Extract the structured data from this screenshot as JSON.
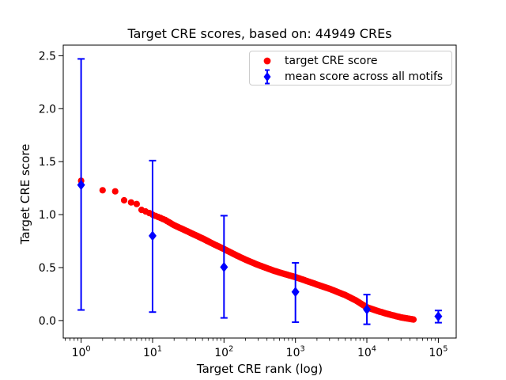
{
  "figure": {
    "background": "#ffffff",
    "text_color": "#000000"
  },
  "chart_data": {
    "type": "scatter",
    "title": "Target CRE scores, based on: 44949 CREs",
    "xlabel": "Target CRE rank (log)",
    "ylabel": "Target CRE score",
    "x_scale": "log",
    "grid": false,
    "xlim_log10": [
      -0.25,
      5.25
    ],
    "ylim": [
      -0.165,
      2.6
    ],
    "x_tick_exponents": [
      0,
      1,
      2,
      3,
      4,
      5
    ],
    "x_tick_base": "10",
    "y_ticks": [
      "0.0",
      "0.5",
      "1.0",
      "1.5",
      "2.0",
      "2.5"
    ],
    "legend": {
      "position": "upper right",
      "entries": [
        {
          "label": "target CRE score",
          "color": "#ff0000",
          "marker": "circle"
        },
        {
          "label": "mean score across all motifs",
          "color": "#0000ff",
          "marker": "diamond-errorbar"
        }
      ]
    },
    "series": [
      {
        "name": "target CRE score",
        "type": "scatter",
        "marker": "circle",
        "color": "#ff0000",
        "marker_radius_px": 4.1,
        "n_points": 44949,
        "comment": "score vs rank curve; anchors are [rank, score] read off the plot, interpolated log-linearly",
        "anchors": [
          [
            1,
            1.32
          ],
          [
            2,
            1.23
          ],
          [
            3,
            1.22
          ],
          [
            4,
            1.135
          ],
          [
            5,
            1.115
          ],
          [
            6,
            1.1
          ],
          [
            7,
            1.045
          ],
          [
            8,
            1.03
          ],
          [
            9,
            1.015
          ],
          [
            10,
            1.0
          ],
          [
            15,
            0.95
          ],
          [
            20,
            0.9
          ],
          [
            30,
            0.845
          ],
          [
            50,
            0.775
          ],
          [
            70,
            0.725
          ],
          [
            100,
            0.675
          ],
          [
            150,
            0.615
          ],
          [
            200,
            0.575
          ],
          [
            300,
            0.525
          ],
          [
            500,
            0.47
          ],
          [
            700,
            0.44
          ],
          [
            1000,
            0.41
          ],
          [
            2000,
            0.34
          ],
          [
            3000,
            0.3
          ],
          [
            5000,
            0.24
          ],
          [
            7000,
            0.19
          ],
          [
            10000,
            0.125
          ],
          [
            15000,
            0.085
          ],
          [
            20000,
            0.06
          ],
          [
            30000,
            0.03
          ],
          [
            44949,
            0.01
          ]
        ]
      },
      {
        "name": "mean score across all motifs",
        "type": "errorbar",
        "marker": "diamond",
        "color": "#0000ff",
        "points": [
          {
            "rank": 1,
            "mean": 1.28,
            "lo": 0.1,
            "hi": 2.47
          },
          {
            "rank": 10,
            "mean": 0.8,
            "lo": 0.08,
            "hi": 1.51
          },
          {
            "rank": 100,
            "mean": 0.505,
            "lo": 0.025,
            "hi": 0.99
          },
          {
            "rank": 1000,
            "mean": 0.27,
            "lo": -0.015,
            "hi": 0.545
          },
          {
            "rank": 10000,
            "mean": 0.105,
            "lo": -0.035,
            "hi": 0.245
          },
          {
            "rank": 100000,
            "mean": 0.04,
            "lo": -0.02,
            "hi": 0.095
          }
        ]
      }
    ]
  }
}
